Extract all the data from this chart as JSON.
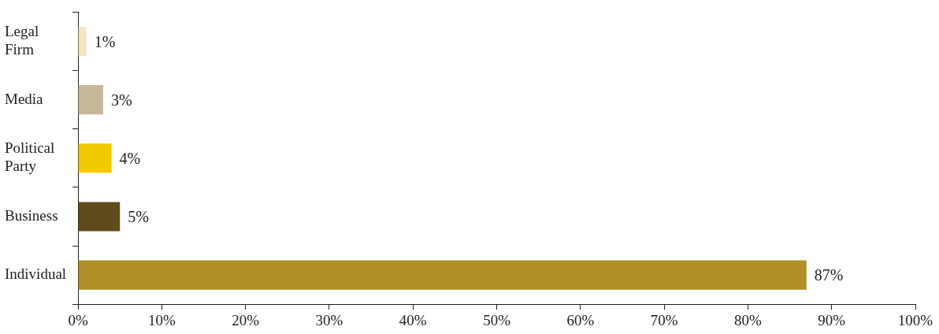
{
  "chart_data": {
    "type": "bar",
    "orientation": "horizontal",
    "categories": [
      "Legal Firm",
      "Media",
      "Political Party",
      "Business",
      "Individual"
    ],
    "values": [
      1,
      3,
      4,
      5,
      87
    ],
    "colors": [
      "#f3e6c2",
      "#c8b89a",
      "#f2c900",
      "#5e4a1c",
      "#af8f26"
    ],
    "value_labels": [
      "1%",
      "3%",
      "4%",
      "5%",
      "87%"
    ],
    "xlim": [
      0,
      100
    ],
    "xticks": [
      {
        "value": 0,
        "label": "0%"
      },
      {
        "value": 10,
        "label": "10%"
      },
      {
        "value": 20,
        "label": "20%"
      },
      {
        "value": 30,
        "label": "30%"
      },
      {
        "value": 40,
        "label": "40%"
      },
      {
        "value": 50,
        "label": "50%"
      },
      {
        "value": 60,
        "label": "60%"
      },
      {
        "value": 70,
        "label": "70%"
      },
      {
        "value": 80,
        "label": "80%"
      },
      {
        "value": 90,
        "label": "90%"
      },
      {
        "value": 100,
        "label": "100%"
      }
    ],
    "grid": false,
    "legend": false
  }
}
